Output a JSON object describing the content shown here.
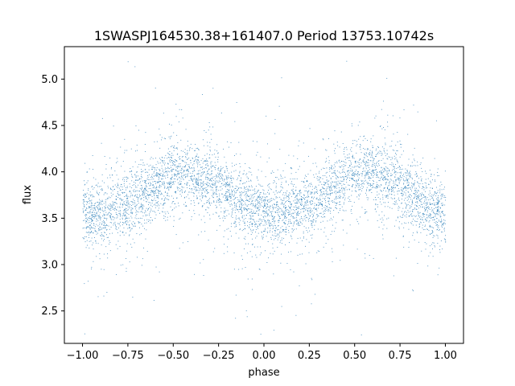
{
  "chart_data": {
    "type": "scatter",
    "title": "1SWASPJ164530.38+161407.0 Period 13753.10742s",
    "xlabel": "phase",
    "ylabel": "flux",
    "xlim": [
      -1.1,
      1.1
    ],
    "ylim": [
      2.15,
      5.35
    ],
    "x_ticks": [
      -1.0,
      -0.75,
      -0.5,
      -0.25,
      0.0,
      0.25,
      0.5,
      0.75,
      1.0
    ],
    "x_tick_labels": [
      "−1.00",
      "−0.75",
      "−0.50",
      "−0.25",
      "0.00",
      "0.25",
      "0.50",
      "0.75",
      "1.00"
    ],
    "y_ticks": [
      2.5,
      3.0,
      3.5,
      4.0,
      4.5,
      5.0
    ],
    "y_tick_labels": [
      "2.5",
      "3.0",
      "3.5",
      "4.0",
      "4.5",
      "5.0"
    ],
    "grid": false,
    "legend": "none",
    "point_color": "#1f77b4",
    "series": [
      {
        "x": [
          -1.0,
          -0.9,
          -0.8,
          -0.7,
          -0.6,
          -0.5,
          -0.4,
          -0.3,
          -0.2,
          -0.1,
          0.0,
          0.1,
          0.2,
          0.3,
          0.4,
          0.5,
          0.6,
          0.7,
          0.8,
          0.9,
          1.0
        ],
        "y": [
          3.55,
          3.55,
          3.62,
          3.72,
          3.85,
          3.96,
          3.97,
          3.9,
          3.78,
          3.64,
          3.55,
          3.55,
          3.62,
          3.72,
          3.85,
          3.96,
          3.97,
          3.9,
          3.78,
          3.64,
          3.55
        ]
      }
    ]
  }
}
